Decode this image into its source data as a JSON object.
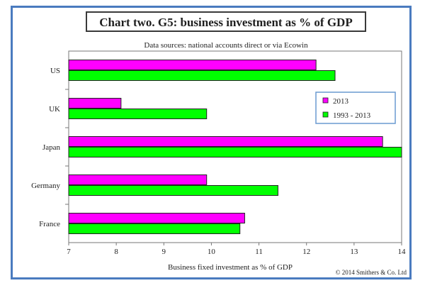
{
  "chart_data": {
    "type": "bar",
    "orientation": "horizontal",
    "title": "Chart two. G5: business investment as % of GDP",
    "subtitle": "Data sources: national accounts direct or via Ecowin",
    "xlabel": "Business fixed investment as % of GDP",
    "ylabel": "",
    "categories": [
      "US",
      "UK",
      "Japan",
      "Germany",
      "France"
    ],
    "series": [
      {
        "name": "2013",
        "color": "#ff00ff",
        "values": [
          12.2,
          8.1,
          13.6,
          9.9,
          10.7
        ]
      },
      {
        "name": "1993 - 2013",
        "color": "#00ff00",
        "values": [
          12.6,
          9.9,
          14.0,
          11.4,
          10.6
        ]
      }
    ],
    "xlim": [
      7,
      14
    ],
    "xticks": [
      7,
      8,
      9,
      10,
      11,
      12,
      13,
      14
    ],
    "grid": false,
    "legend_position": "top-right",
    "copyright": "© 2014 Smithers & Co. Ltd"
  }
}
